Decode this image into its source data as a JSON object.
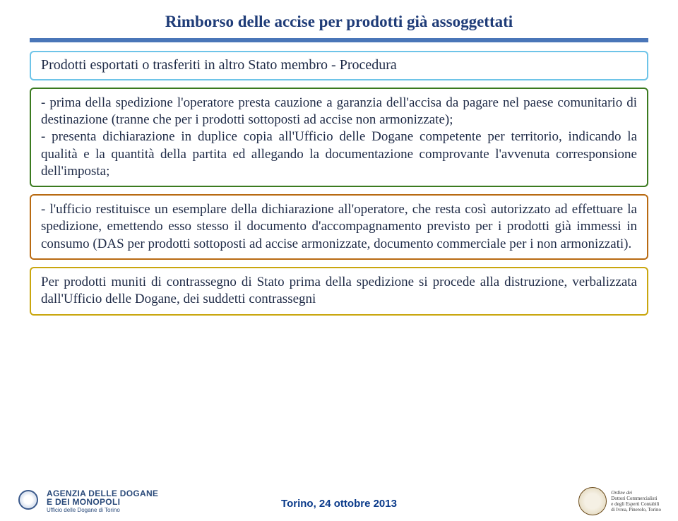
{
  "colors": {
    "title_text": "#1f3c78",
    "underline_top": "#4a76b8",
    "underline_bottom": "#4a76b8",
    "box1_border": "#6ec4e8",
    "box2_border": "#3a7a1f",
    "box3_border": "#b86a12",
    "box4_border": "#c9a60e",
    "body_text": "#1e2a46",
    "footer_text": "#0a3a8a"
  },
  "title": "Rimborso delle accise per prodotti già assoggettati",
  "subtitle": "Prodotti  esportati o trasferiti in altro Stato membro - Procedura",
  "box2": "- prima della spedizione l'operatore presta cauzione a garanzia dell'accisa da pagare nel paese comunitario di destinazione (tranne che per i prodotti sottoposti ad accise non armonizzate);\n- presenta dichiarazione in duplice copia all'Ufficio delle Dogane competente per territorio, indicando la qualità e la quantità della partita ed allegando la documentazione comprovante l'avvenuta corresponsione dell'imposta;",
  "box3": "- l'ufficio restituisce un esemplare della dichiarazione all'operatore, che resta così autorizzato ad effettuare la spedizione, emettendo esso stesso il documento d'accompagnamento previsto per i prodotti già immessi in consumo (DAS per  prodotti sottoposti ad accise armonizzate, documento commerciale per i non armonizzati).",
  "box4": "Per prodotti muniti di contrassegno di Stato prima della spedizione si procede alla distruzione, verbalizzata dall'Ufficio delle Dogane, dei suddetti contrassegni",
  "footer": {
    "agenzia_line1": "AGENZIA DELLE DOGANE",
    "agenzia_line2": "E DEI MONOPOLI",
    "agenzia_sub": "Ufficio delle Dogane di Torino",
    "center": "Torino, 24 ottobre 2013",
    "ordine_l1": "Ordine dei",
    "ordine_l2": "Dottori Commercialisti",
    "ordine_l3": "e degli Esperti Contabili",
    "ordine_l4": "di Ivrea, Pinerolo, Torino"
  }
}
